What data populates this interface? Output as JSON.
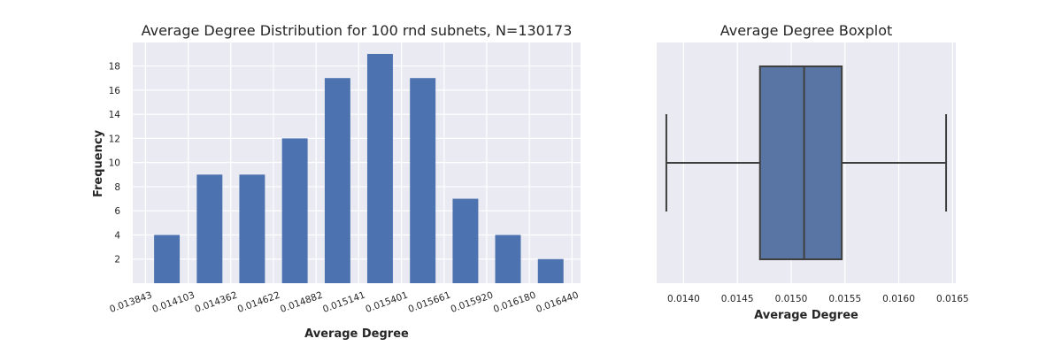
{
  "colors": {
    "background": "#EAEAF2",
    "grid": "#FFFFFF",
    "bar": "#4C72B0",
    "box_fill": "#5975A4",
    "box_line": "#3F3F3F"
  },
  "chart_data": [
    {
      "type": "bar",
      "title": "Average Degree Distribution for 100 rnd subnets, N=130173",
      "xlabel": "Average Degree",
      "ylabel": "Frequency",
      "bin_edges": [
        0.013843,
        0.014103,
        0.014362,
        0.014622,
        0.014882,
        0.015141,
        0.015401,
        0.015661,
        0.01592,
        0.01618,
        0.01644
      ],
      "bin_edge_labels": [
        "0.013843",
        "0.014103",
        "0.014362",
        "0.014622",
        "0.014882",
        "0.015141",
        "0.015401",
        "0.015661",
        "0.015920",
        "0.016180",
        "0.016440"
      ],
      "values": [
        4,
        9,
        9,
        12,
        17,
        19,
        17,
        7,
        4,
        2
      ],
      "yticks": [
        2,
        4,
        6,
        8,
        10,
        12,
        14,
        16,
        18
      ],
      "ylim": [
        0,
        19.95
      ],
      "grid": true
    },
    {
      "type": "boxplot",
      "title": "Average Degree Boxplot",
      "xlabel": "Average Degree",
      "whisker_low": 0.01384,
      "q1": 0.01471,
      "median": 0.01512,
      "q3": 0.01547,
      "whisker_high": 0.01644,
      "xticks": [
        0.014,
        0.0145,
        0.015,
        0.0155,
        0.016,
        0.0165
      ],
      "xtick_labels": [
        "0.0140",
        "0.0145",
        "0.0150",
        "0.0155",
        "0.0160",
        "0.0165"
      ],
      "xlim": [
        0.01375,
        0.01653
      ],
      "grid": true
    }
  ]
}
